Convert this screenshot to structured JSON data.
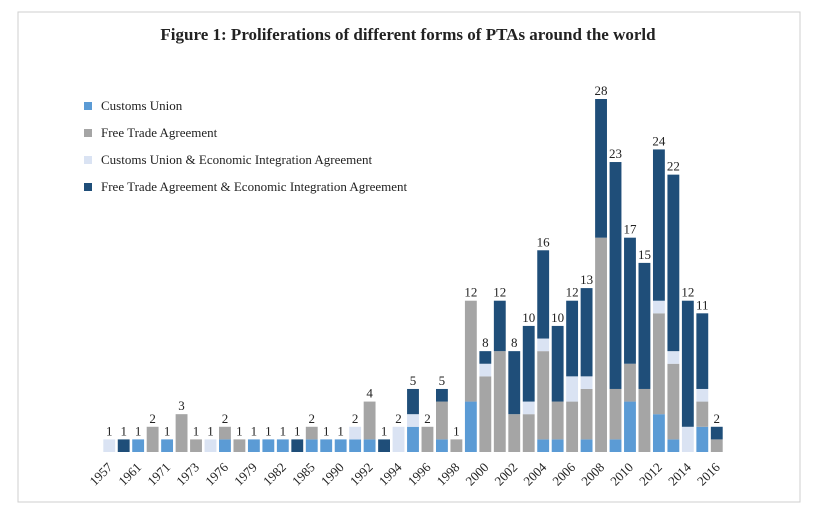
{
  "chart_data": {
    "type": "stacked_bar",
    "title": "Figure 1: Proliferations of different forms of PTAs around the world",
    "categories": [
      "1957",
      null,
      "1961",
      null,
      "1971",
      null,
      "1973",
      null,
      "1976",
      null,
      "1979",
      null,
      "1982",
      null,
      "1985",
      null,
      "1990",
      null,
      "1992",
      null,
      "1994",
      null,
      "1996",
      null,
      "1998",
      null,
      "2000",
      null,
      "2002",
      null,
      "2004",
      null,
      "2006",
      null,
      "2008",
      null,
      "2010",
      null,
      "2012",
      null,
      "2014",
      null,
      "2016"
    ],
    "series": [
      {
        "name": "Customs Union",
        "color": "#5b9bd5",
        "values": [
          0,
          0,
          1,
          0,
          1,
          0,
          0,
          0,
          1,
          0,
          1,
          1,
          1,
          0,
          1,
          1,
          1,
          1,
          1,
          0,
          0,
          2,
          0,
          1,
          0,
          4,
          0,
          0,
          0,
          0,
          1,
          1,
          0,
          1,
          0,
          1,
          4,
          0,
          3,
          1,
          0,
          2,
          0
        ]
      },
      {
        "name": "Free Trade Agreement",
        "color": "#a5a5a5",
        "values": [
          0,
          0,
          0,
          2,
          0,
          3,
          1,
          0,
          1,
          1,
          0,
          0,
          0,
          0,
          1,
          0,
          0,
          0,
          3,
          0,
          0,
          0,
          2,
          3,
          1,
          8,
          6,
          8,
          3,
          3,
          7,
          3,
          4,
          4,
          17,
          4,
          3,
          5,
          8,
          6,
          0,
          2,
          1
        ]
      },
      {
        "name": "Customs Union & Economic Integration Agreement",
        "color": "#dae3f3",
        "values": [
          1,
          0,
          0,
          0,
          0,
          0,
          0,
          1,
          0,
          0,
          0,
          0,
          0,
          0,
          0,
          0,
          0,
          1,
          0,
          0,
          2,
          1,
          0,
          0,
          0,
          0,
          1,
          0,
          0,
          1,
          1,
          0,
          2,
          1,
          0,
          0,
          0,
          0,
          1,
          1,
          2,
          1,
          0
        ]
      },
      {
        "name": "Free Trade Agreement & Economic Integration Agreement",
        "color": "#1f4e79",
        "values": [
          0,
          1,
          0,
          0,
          0,
          0,
          0,
          0,
          0,
          0,
          0,
          0,
          0,
          1,
          0,
          0,
          0,
          0,
          0,
          1,
          0,
          2,
          0,
          1,
          0,
          0,
          1,
          4,
          5,
          6,
          7,
          6,
          6,
          7,
          11,
          18,
          10,
          10,
          12,
          14,
          10,
          6,
          1
        ]
      }
    ],
    "totals": [
      1,
      1,
      1,
      2,
      1,
      3,
      1,
      1,
      2,
      1,
      1,
      1,
      1,
      1,
      2,
      1,
      1,
      2,
      4,
      1,
      2,
      5,
      2,
      5,
      1,
      12,
      8,
      12,
      8,
      10,
      16,
      10,
      12,
      13,
      28,
      23,
      17,
      15,
      24,
      22,
      12,
      11,
      2
    ],
    "ylim": [
      0,
      28
    ]
  }
}
